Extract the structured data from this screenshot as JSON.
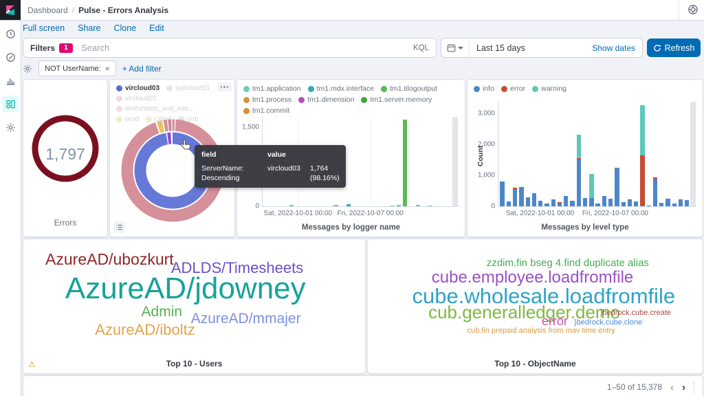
{
  "header": {
    "breadcrumb_parent": "Dashboard",
    "breadcrumb_separator": "/",
    "breadcrumb_current": "Pulse - Errors Analysis"
  },
  "nav_links": [
    "Full screen",
    "Share",
    "Clone",
    "Edit"
  ],
  "query_bar": {
    "filters_label": "Filters",
    "filters_count": "1",
    "search_placeholder": "Search",
    "kql_label": "KQL",
    "time_range": "Last 15 days",
    "show_dates_label": "Show dates",
    "refresh_label": "Refresh"
  },
  "filter_bar": {
    "pill_label": "NOT UserName:",
    "remove_icon": "×",
    "add_filter_label": "+ Add filter"
  },
  "server_donut_legend": [
    {
      "label": "vircloud03",
      "color": "#5a6bd3",
      "active": true
    },
    {
      "label": "sydcloud01",
      "color": "#a4b0e6",
      "faded": true
    },
    {
      "label": "vircloud01",
      "color": "#d98f96",
      "faded": true
    },
    {
      "label": "timesheets_and_inte...",
      "color": "#d98f96",
      "faded": true
    },
    {
      "label": "prod",
      "color": "#e3c36a",
      "faded": true
    },
    {
      "label": "cxmd",
      "color": "#e3c36a",
      "faded": true
    },
    {
      "label": "crm",
      "color": "#a4b0e6",
      "faded": true
    }
  ],
  "tooltip": {
    "header_field": "field",
    "header_value": "value",
    "field_line1": "ServerName:",
    "field_line2": "Descending",
    "value_name": "vircloud03",
    "value_number": "1,764",
    "value_pct": "(98.16%)"
  },
  "pagination": {
    "range_label": "1–50 of 15,378"
  },
  "chart_data": [
    {
      "id": "errors-metric",
      "type": "metric",
      "title": "Errors",
      "value": "1,797",
      "ring_color": "#7a0f20"
    },
    {
      "id": "servername-donut",
      "type": "pie",
      "hovered": {
        "field": "ServerName: Descending",
        "label": "vircloud03",
        "value": 1764,
        "percent": "98.16%"
      },
      "rings": [
        {
          "r": 47,
          "width": 17,
          "slices": [
            {
              "value": 97.2,
              "color": "#6679d8",
              "label": "vircloud03"
            },
            {
              "value": 0.5,
              "color": "gap"
            },
            {
              "value": 1.5,
              "color": "#8a4bd0"
            },
            {
              "value": 0.8,
              "color": "gap"
            }
          ]
        },
        {
          "r": 66,
          "width": 17,
          "slices": [
            {
              "value": 0.7,
              "color": "#d5909a"
            },
            {
              "value": 0.3,
              "color": "gap"
            },
            {
              "value": 93.6,
              "color": "#d5909a"
            },
            {
              "value": 0.5,
              "color": "gap"
            },
            {
              "value": 1.7,
              "color": "#e5c366"
            },
            {
              "value": 0.4,
              "color": "gap"
            },
            {
              "value": 1.2,
              "color": "#d5909a"
            },
            {
              "value": 0.3,
              "color": "gap"
            },
            {
              "value": 1.0,
              "color": "#c2889c"
            },
            {
              "value": 0.3,
              "color": "gap"
            }
          ]
        }
      ]
    },
    {
      "id": "messages-by-logger-name",
      "type": "bar",
      "title": "Messages by logger name",
      "ymax": 1700,
      "y_ticks": [
        {
          "label": "1,500",
          "value": 1500
        },
        {
          "label": "0",
          "value": 0
        }
      ],
      "x_ticks": [
        {
          "label": "Sat, 2022-10-01 00:00",
          "pct": 18
        },
        {
          "label": "Fri, 2022-10-07 00:00",
          "pct": 55
        }
      ],
      "gridlines_x": [
        18,
        55
      ],
      "partial_band": true,
      "series": [
        {
          "name": "tm1.application",
          "color": "#6dccb1"
        },
        {
          "name": "tm1.mdx.interface",
          "color": "#35aab5"
        },
        {
          "name": "tm1.tilogoutput",
          "color": "#58ba51"
        },
        {
          "name": "tm1.process",
          "color": "#d9913f"
        },
        {
          "name": "tm1.dimension",
          "color": "#b94fbe"
        },
        {
          "name": "tm1.server.memory",
          "color": "#3ea63c"
        },
        {
          "name": "tm1.commit",
          "color": "#dc8c36"
        }
      ],
      "buckets": [
        {},
        {},
        {},
        {},
        {
          "tm1.application": 20
        },
        {},
        {},
        {},
        {},
        {},
        {},
        {
          "tm1.application": 20
        },
        {},
        {
          "tm1.mdx.interface": 38
        },
        {},
        {},
        {},
        {},
        {},
        {},
        {
          "tm1.application": 16
        },
        {
          "tm1.application": 22
        },
        {
          "tm1.tilogoutput": 1650
        },
        {},
        {
          "tm1.application": 20
        },
        {},
        {
          "tm1.application": 14
        },
        {},
        {},
        {}
      ]
    },
    {
      "id": "messages-by-level-type",
      "type": "bar",
      "title": "Messages by level type",
      "ylabel": "Count",
      "ymax": 3380,
      "y_ticks": [
        {
          "label": "3,000",
          "value": 3000
        },
        {
          "label": "2,000",
          "value": 2000
        },
        {
          "label": "1,000",
          "value": 1000
        },
        {
          "label": "0",
          "value": 0
        }
      ],
      "x_ticks": [
        {
          "label": "Sat, 2022-10-01 00:00",
          "pct": 21
        },
        {
          "label": "Fri, 2022-10-07 00:00",
          "pct": 59
        }
      ],
      "gridlines_x": [],
      "partial_band": true,
      "series": [
        {
          "name": "info",
          "color": "#4d87ca"
        },
        {
          "name": "error",
          "color": "#c74b34"
        },
        {
          "name": "warning",
          "color": "#5dc9b8"
        }
      ],
      "buckets": [
        {
          "info": 800
        },
        {
          "info": 150
        },
        {
          "info": 560,
          "error": 40
        },
        {
          "info": 630
        },
        {
          "info": 280
        },
        {
          "info": 430
        },
        {
          "info": 180
        },
        {
          "info": 80
        },
        {
          "info": 220
        },
        {
          "info": 100,
          "error": 25
        },
        {
          "info": 330
        },
        {
          "info": 170
        },
        {
          "info": 1520,
          "error": 40,
          "warning": 750
        },
        {
          "info": 260
        },
        {
          "info": 270,
          "warning": 770
        },
        {
          "info": 100
        },
        {
          "info": 340
        },
        {
          "info": 250
        },
        {
          "info": 1250
        },
        {
          "info": 140
        },
        {
          "info": 200,
          "error": 25
        },
        {
          "info": 160
        },
        {
          "info": 20,
          "error": 1630,
          "warning": 1620
        },
        {
          "info": 30
        },
        {
          "info": 900,
          "error": 25
        },
        {
          "info": 120
        },
        {
          "info": 240
        },
        {
          "info": 100
        },
        {
          "info": 210,
          "error": 15
        },
        {
          "info": 190,
          "error": 15
        }
      ]
    },
    {
      "id": "top-10-users",
      "type": "tagcloud",
      "title": "Top 10 - Users",
      "tags": [
        {
          "text": "AzureAD/ubozkurt",
          "color": "#8f2727",
          "size": 23,
          "x": 5,
          "y": 7
        },
        {
          "text": "ADLDS/Timesheets",
          "color": "#6b4fc8",
          "size": 22,
          "x": 43,
          "y": 15
        },
        {
          "text": "AzureAD/jdowney",
          "color": "#17a398",
          "size": 44,
          "x": 11,
          "y": 26
        },
        {
          "text": "Admin",
          "color": "#56b356",
          "size": 21,
          "x": 34,
          "y": 54
        },
        {
          "text": "AzureAD/mmajer",
          "color": "#7d8fe6",
          "size": 21,
          "x": 49,
          "y": 60
        },
        {
          "text": "AzureAD/iboltz",
          "color": "#e2a44f",
          "size": 22,
          "x": 20,
          "y": 70
        }
      ]
    },
    {
      "id": "top-10-objectname",
      "type": "tagcloud",
      "title": "Top 10 - ObjectName",
      "tags": [
        {
          "text": "zzdim.fin bseg 4.find duplicate alias",
          "color": "#45ad53",
          "size": 15,
          "x": 35,
          "y": 13
        },
        {
          "text": "cube.employee.loadfromfile",
          "color": "#9b50c4",
          "size": 24,
          "x": 18,
          "y": 23
        },
        {
          "text": "cube.wholesale.loadfromfile",
          "color": "#2fa3c7",
          "size": 31,
          "x": 12,
          "y": 37
        },
        {
          "text": "cub.generalledger.demo",
          "color": "#7eba3e",
          "size": 26,
          "x": 17,
          "y": 53
        },
        {
          "text": "}bedrock.cube.create",
          "color": "#ad4a42",
          "size": 11,
          "x": 70,
          "y": 58
        },
        {
          "text": "error",
          "color": "#cb4fb1",
          "size": 18,
          "x": 52,
          "y": 64
        },
        {
          "text": "}bedrock.cube.clone",
          "color": "#4b8ad6",
          "size": 11,
          "x": 62,
          "y": 67
        },
        {
          "text": "cub.fin prepaid analysis from mav time entry",
          "color": "#d89b3e",
          "size": 11,
          "x": 29,
          "y": 74
        }
      ]
    }
  ]
}
